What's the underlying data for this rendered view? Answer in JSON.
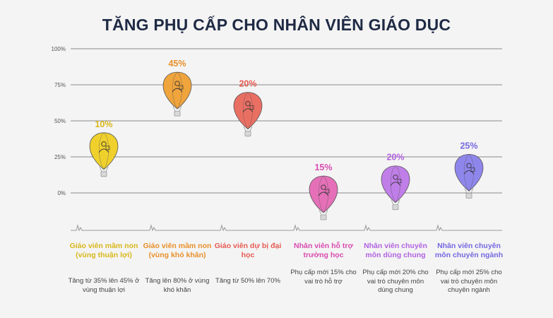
{
  "chart_data": {
    "type": "bar",
    "title": "TĂNG PHỤ CẤP CHO NHÂN VIÊN GIÁO DỤC",
    "y_ticks": [
      "100%",
      "75%",
      "50%",
      "25%",
      "0%"
    ],
    "ylim": [
      -20,
      100
    ],
    "grid": true,
    "categories": [
      "Giáo viên mầm non (vùng thuận lợi)",
      "Giáo viên mầm non (vùng khó khăn)",
      "Giáo viên dự bị đại học",
      "Nhân viên hỗ trợ trường học",
      "Nhân viên chuyên môn dùng chung",
      "Nhân viên chuyên môn chuyên ngành"
    ],
    "values": [
      10,
      45,
      20,
      15,
      20,
      25
    ],
    "value_labels": [
      "10%",
      "45%",
      "20%",
      "15%",
      "20%",
      "25%"
    ],
    "descriptions": [
      "Tăng từ 35% lên 45% ở vùng thuận lợi",
      "Tăng lên 80% ở vùng khó khăn",
      "Tăng từ 50% lên 70%",
      "Phụ cấp mới 15% cho vai trò hỗ trợ",
      "Phụ cấp mới 20% cho vai trò chuyên môn dùng chung",
      "Phụ cấp mới 25% cho vai trò chuyên môn chuyên ngành"
    ],
    "balloon_levels": [
      30,
      72,
      58,
      0,
      7,
      15
    ],
    "colors": [
      "#f0d12c",
      "#f0a43c",
      "#ea6f63",
      "#e570b8",
      "#c07ee8",
      "#8f86ec"
    ],
    "label_colors": [
      "#d9b71a",
      "#e8902a",
      "#e65a52",
      "#d94bb0",
      "#b163e0",
      "#7468e0"
    ],
    "icons": [
      "child-teacher-icon",
      "school-bag-icon",
      "graduate-icon",
      "support-staff-icon",
      "shared-staff-icon",
      "specialist-icon"
    ]
  }
}
